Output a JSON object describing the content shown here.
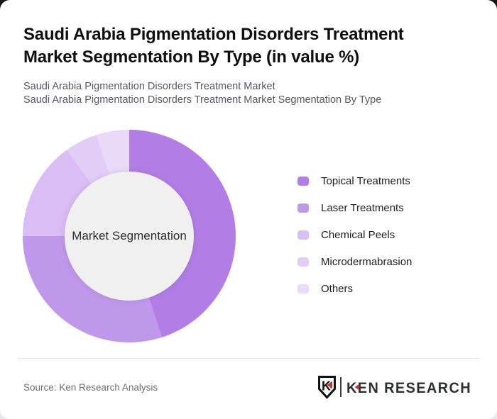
{
  "page": {
    "title": "Saudi Arabia Pigmentation Disorders Treatment Market Segmentation By Type (in value %)",
    "subtitle_line1": "Saudi Arabia Pigmentation Disorders Treatment Market",
    "subtitle_line2": "Saudi Arabia Pigmentation Disorders Treatment Market Segmentation By Type"
  },
  "chart_data": {
    "type": "pie",
    "variant": "donut",
    "title": "Saudi Arabia Pigmentation Disorders Treatment Market Segmentation By Type (in value %)",
    "center_label": "Market Segmentation",
    "categories": [
      "Topical Treatments",
      "Laser Treatments",
      "Chemical Peels",
      "Microdermabrasion",
      "Others"
    ],
    "values": [
      45,
      30,
      15,
      5,
      5
    ],
    "unit": "%",
    "colors": [
      "#b27ee6",
      "#c098eb",
      "#d9bdf4",
      "#e2cdf6",
      "#ead9f9"
    ],
    "inner_hole_color": "#f0f0f1",
    "start_angle_deg": 0,
    "direction": "clockwise",
    "legend_position": "right",
    "data_labels_shown": false
  },
  "footer": {
    "source": "Source: Ken Research Analysis",
    "logo_badge_letter": "K",
    "logo_text": "KEN RESEARCH",
    "logo_accent_color": "#c5372c",
    "logo_text_color": "#2e3033"
  }
}
